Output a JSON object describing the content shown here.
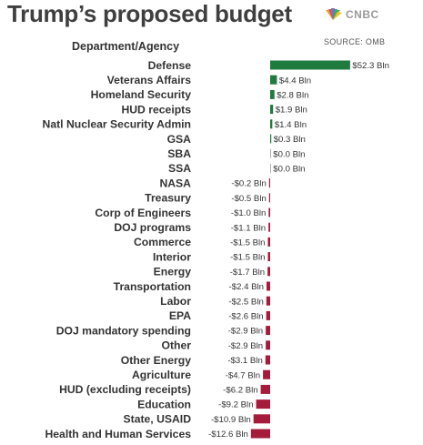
{
  "header": {
    "title": "Trump’s proposed budget",
    "brand": "CNBC",
    "source": "SOURCE: OMB"
  },
  "colors": {
    "positive": "#1f7a3d",
    "negative": "#a51c3a",
    "zero": "#9a9a9a",
    "text": "#333333",
    "title": "#3f3f3f"
  },
  "chart_data": {
    "type": "bar",
    "orientation": "horizontal",
    "title": "Trump’s proposed budget",
    "column_header": "Department/Agency",
    "unit": "Bln",
    "categories": [
      "Defense",
      "Veterans Affairs",
      "Homeland Security",
      "HUD receipts",
      "Natl Nuclear Security Admin",
      "GSA",
      "SBA",
      "SSA",
      "NASA",
      "Treasury",
      "Corp of Engineers",
      "DOJ programs",
      "Commerce",
      "Interior",
      "Energy",
      "Transportation",
      "Labor",
      "EPA",
      "DOJ mandatory spending",
      "Other",
      "Other Energy",
      "Agriculture",
      "HUD (excluding receipts)",
      "Education",
      "State, USAID",
      "Health and Human Services"
    ],
    "values": [
      52.3,
      4.4,
      2.8,
      1.9,
      1.4,
      0.3,
      0.0,
      0.0,
      -0.2,
      -0.5,
      -1.0,
      -1.1,
      -1.5,
      -1.5,
      -1.7,
      -2.4,
      -2.5,
      -2.6,
      -2.9,
      -2.9,
      -3.1,
      -4.7,
      -6.2,
      -9.2,
      -10.9,
      -12.6
    ],
    "value_labels": [
      "$52.3 Bln",
      "$4.4 Bln",
      "$2.8 Bln",
      "$1.9 Bln",
      "$1.4 Bln",
      "$0.3 Bln",
      "$0.0 Bln",
      "$0.0 Bln",
      "-$0.2 Bln",
      "-$0.5 Bln",
      "-$1.0 Bln",
      "-$1.1 Bln",
      "-$1.5 Bln",
      "-$1.5 Bln",
      "-$1.7 Bln",
      "-$2.4 Bln",
      "-$2.5 Bln",
      "-$2.6 Bln",
      "-$2.9 Bln",
      "-$2.9 Bln",
      "-$3.1 Bln",
      "-$4.7 Bln",
      "-$6.2 Bln",
      "-$9.2 Bln",
      "-$10.9 Bln",
      "-$12.6 Bln"
    ],
    "grid": false,
    "legend": "none"
  }
}
